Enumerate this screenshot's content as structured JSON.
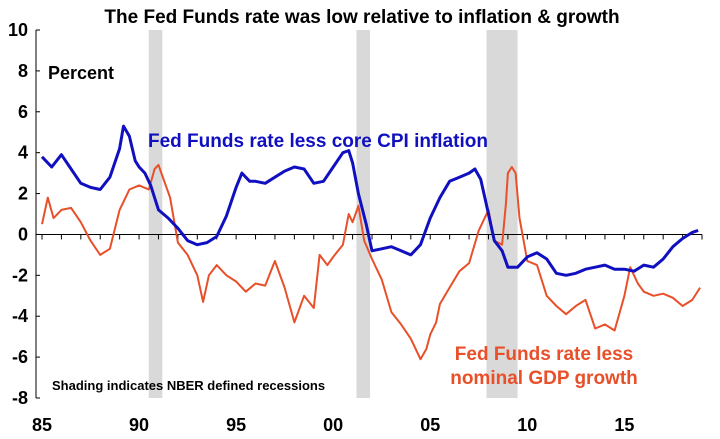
{
  "chart_data": {
    "type": "line",
    "title": "The Fed Funds rate was low relative to inflation & growth",
    "ylabel": "Percent",
    "ylim": [
      -8,
      10
    ],
    "xlim": [
      1985,
      2019
    ],
    "yticks": [
      "10",
      "8",
      "6",
      "4",
      "2",
      "0",
      "-2",
      "-4",
      "-6",
      "-8"
    ],
    "xticks": [
      {
        "label": "85",
        "year": 1985
      },
      {
        "label": "90",
        "year": 1990
      },
      {
        "label": "95",
        "year": 1995
      },
      {
        "label": "00",
        "year": 2000
      },
      {
        "label": "05",
        "year": 2005
      },
      {
        "label": "10",
        "year": 2010
      },
      {
        "label": "15",
        "year": 2015
      }
    ],
    "grid": false,
    "note": "Shading indicates NBER defined recessions",
    "recessions": [
      [
        1990.5,
        1991.2
      ],
      [
        2001.2,
        2001.9
      ],
      [
        2007.9,
        2009.5
      ]
    ],
    "colors": {
      "series1": "#1010c0",
      "series2": "#e8502a",
      "recession": "#d9d9d9"
    },
    "series": [
      {
        "name": "Fed Funds rate less core CPI inflation",
        "points": [
          [
            1985.0,
            3.8
          ],
          [
            1985.5,
            3.3
          ],
          [
            1986.0,
            3.9
          ],
          [
            1986.5,
            3.2
          ],
          [
            1987.0,
            2.5
          ],
          [
            1987.5,
            2.3
          ],
          [
            1988.0,
            2.2
          ],
          [
            1988.5,
            2.8
          ],
          [
            1989.0,
            4.2
          ],
          [
            1989.2,
            5.3
          ],
          [
            1989.5,
            4.8
          ],
          [
            1989.8,
            3.6
          ],
          [
            1990.0,
            3.3
          ],
          [
            1990.3,
            3.0
          ],
          [
            1990.6,
            2.4
          ],
          [
            1991.0,
            1.2
          ],
          [
            1991.5,
            0.8
          ],
          [
            1992.0,
            0.3
          ],
          [
            1992.5,
            -0.3
          ],
          [
            1993.0,
            -0.5
          ],
          [
            1993.5,
            -0.4
          ],
          [
            1994.0,
            -0.1
          ],
          [
            1994.5,
            0.9
          ],
          [
            1995.0,
            2.3
          ],
          [
            1995.3,
            3.0
          ],
          [
            1995.7,
            2.6
          ],
          [
            1996.0,
            2.6
          ],
          [
            1996.5,
            2.5
          ],
          [
            1997.0,
            2.8
          ],
          [
            1997.5,
            3.1
          ],
          [
            1998.0,
            3.3
          ],
          [
            1998.5,
            3.2
          ],
          [
            1999.0,
            2.5
          ],
          [
            1999.5,
            2.6
          ],
          [
            2000.0,
            3.3
          ],
          [
            2000.5,
            4.0
          ],
          [
            2000.8,
            4.1
          ],
          [
            2001.0,
            3.5
          ],
          [
            2001.3,
            2.0
          ],
          [
            2001.7,
            0.5
          ],
          [
            2002.0,
            -0.8
          ],
          [
            2002.5,
            -0.7
          ],
          [
            2003.0,
            -0.6
          ],
          [
            2003.5,
            -0.8
          ],
          [
            2004.0,
            -1.0
          ],
          [
            2004.5,
            -0.5
          ],
          [
            2005.0,
            0.8
          ],
          [
            2005.5,
            1.8
          ],
          [
            2006.0,
            2.6
          ],
          [
            2006.5,
            2.8
          ],
          [
            2007.0,
            3.0
          ],
          [
            2007.3,
            3.2
          ],
          [
            2007.6,
            2.7
          ],
          [
            2008.0,
            1.0
          ],
          [
            2008.3,
            -0.3
          ],
          [
            2008.7,
            -0.8
          ],
          [
            2009.0,
            -1.6
          ],
          [
            2009.5,
            -1.6
          ],
          [
            2010.0,
            -1.1
          ],
          [
            2010.5,
            -0.9
          ],
          [
            2011.0,
            -1.2
          ],
          [
            2011.5,
            -1.9
          ],
          [
            2012.0,
            -2.0
          ],
          [
            2012.5,
            -1.9
          ],
          [
            2013.0,
            -1.7
          ],
          [
            2013.5,
            -1.6
          ],
          [
            2014.0,
            -1.5
          ],
          [
            2014.5,
            -1.7
          ],
          [
            2015.0,
            -1.7
          ],
          [
            2015.5,
            -1.8
          ],
          [
            2016.0,
            -1.5
          ],
          [
            2016.5,
            -1.6
          ],
          [
            2017.0,
            -1.2
          ],
          [
            2017.5,
            -0.6
          ],
          [
            2018.0,
            -0.2
          ],
          [
            2018.5,
            0.1
          ],
          [
            2018.8,
            0.2
          ]
        ]
      },
      {
        "name": "Fed Funds rate less nominal GDP growth",
        "points": [
          [
            1985.0,
            0.5
          ],
          [
            1985.3,
            1.8
          ],
          [
            1985.6,
            0.8
          ],
          [
            1986.0,
            1.2
          ],
          [
            1986.5,
            1.3
          ],
          [
            1987.0,
            0.6
          ],
          [
            1987.5,
            -0.3
          ],
          [
            1988.0,
            -1.0
          ],
          [
            1988.5,
            -0.7
          ],
          [
            1989.0,
            1.2
          ],
          [
            1989.5,
            2.2
          ],
          [
            1990.0,
            2.4
          ],
          [
            1990.5,
            2.2
          ],
          [
            1990.8,
            3.2
          ],
          [
            1991.0,
            3.4
          ],
          [
            1991.3,
            2.6
          ],
          [
            1991.6,
            1.8
          ],
          [
            1992.0,
            -0.4
          ],
          [
            1992.5,
            -1.0
          ],
          [
            1993.0,
            -2.0
          ],
          [
            1993.3,
            -3.3
          ],
          [
            1993.6,
            -2.0
          ],
          [
            1994.0,
            -1.5
          ],
          [
            1994.5,
            -2.0
          ],
          [
            1995.0,
            -2.3
          ],
          [
            1995.5,
            -2.8
          ],
          [
            1996.0,
            -2.4
          ],
          [
            1996.5,
            -2.5
          ],
          [
            1997.0,
            -1.3
          ],
          [
            1997.5,
            -2.6
          ],
          [
            1998.0,
            -4.3
          ],
          [
            1998.5,
            -3.0
          ],
          [
            1999.0,
            -3.6
          ],
          [
            1999.3,
            -1.0
          ],
          [
            1999.7,
            -1.5
          ],
          [
            2000.0,
            -1.1
          ],
          [
            2000.5,
            -0.5
          ],
          [
            2000.8,
            1.0
          ],
          [
            2001.0,
            0.6
          ],
          [
            2001.3,
            1.4
          ],
          [
            2001.6,
            -0.3
          ],
          [
            2002.0,
            -1.2
          ],
          [
            2002.5,
            -2.2
          ],
          [
            2003.0,
            -3.8
          ],
          [
            2003.5,
            -4.4
          ],
          [
            2004.0,
            -5.1
          ],
          [
            2004.5,
            -6.1
          ],
          [
            2004.8,
            -5.6
          ],
          [
            2005.0,
            -4.9
          ],
          [
            2005.3,
            -4.3
          ],
          [
            2005.5,
            -3.4
          ],
          [
            2006.0,
            -2.6
          ],
          [
            2006.5,
            -1.8
          ],
          [
            2007.0,
            -1.4
          ],
          [
            2007.5,
            0.2
          ],
          [
            2008.0,
            1.2
          ],
          [
            2008.3,
            -0.3
          ],
          [
            2008.7,
            -0.5
          ],
          [
            2008.9,
            1.5
          ],
          [
            2009.0,
            3.0
          ],
          [
            2009.2,
            3.3
          ],
          [
            2009.4,
            3.0
          ],
          [
            2009.6,
            0.8
          ],
          [
            2010.0,
            -1.3
          ],
          [
            2010.5,
            -1.5
          ],
          [
            2011.0,
            -3.0
          ],
          [
            2011.5,
            -3.5
          ],
          [
            2012.0,
            -3.9
          ],
          [
            2012.5,
            -3.5
          ],
          [
            2013.0,
            -3.2
          ],
          [
            2013.5,
            -4.6
          ],
          [
            2014.0,
            -4.4
          ],
          [
            2014.5,
            -4.7
          ],
          [
            2015.0,
            -3.0
          ],
          [
            2015.3,
            -1.6
          ],
          [
            2015.7,
            -2.4
          ],
          [
            2016.0,
            -2.8
          ],
          [
            2016.5,
            -3.0
          ],
          [
            2017.0,
            -2.9
          ],
          [
            2017.5,
            -3.1
          ],
          [
            2018.0,
            -3.5
          ],
          [
            2018.5,
            -3.2
          ],
          [
            2018.9,
            -2.6
          ]
        ]
      }
    ]
  }
}
